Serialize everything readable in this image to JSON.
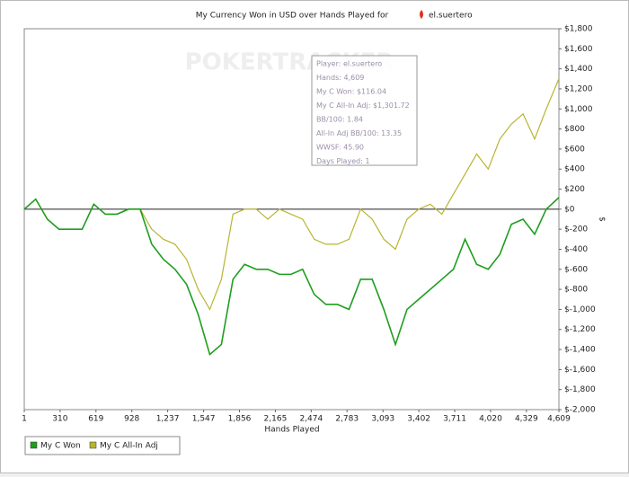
{
  "chart_data": {
    "type": "line",
    "title": "My Currency Won in USD over Hands Played for",
    "player": "el.suertero",
    "watermark": "POKERTRACKER",
    "xlabel": "Hands Played",
    "ylabel": "$",
    "x": [
      1,
      100,
      200,
      300,
      400,
      500,
      600,
      700,
      800,
      900,
      1000,
      1100,
      1200,
      1300,
      1400,
      1500,
      1600,
      1700,
      1800,
      1900,
      2000,
      2100,
      2200,
      2300,
      2400,
      2500,
      2600,
      2700,
      2800,
      2900,
      3000,
      3100,
      3200,
      3300,
      3400,
      3500,
      3600,
      3700,
      3800,
      3900,
      4000,
      4100,
      4200,
      4300,
      4400,
      4500,
      4609
    ],
    "series": [
      {
        "name": "My C Won",
        "color": "#1e9e1e",
        "values": [
          0,
          100,
          -100,
          -200,
          -200,
          -200,
          50,
          -50,
          -50,
          0,
          0,
          -350,
          -500,
          -600,
          -750,
          -1050,
          -1450,
          -1350,
          -700,
          -550,
          -600,
          -600,
          -650,
          -650,
          -600,
          -850,
          -950,
          -950,
          -1000,
          -700,
          -700,
          -1000,
          -1350,
          -1000,
          -900,
          -800,
          -700,
          -600,
          -300,
          -550,
          -600,
          -450,
          -150,
          -100,
          -250,
          0,
          116.04
        ]
      },
      {
        "name": "My C All-In Adj",
        "color": "#b8b432",
        "values": [
          0,
          100,
          -100,
          -200,
          -200,
          -200,
          50,
          -50,
          -50,
          0,
          0,
          -200,
          -300,
          -350,
          -500,
          -800,
          -1000,
          -700,
          -50,
          0,
          0,
          -100,
          0,
          -50,
          -100,
          -300,
          -350,
          -350,
          -300,
          0,
          -100,
          -300,
          -400,
          -100,
          0,
          50,
          -50,
          150,
          350,
          550,
          400,
          700,
          850,
          950,
          700,
          1000,
          1301.72
        ]
      }
    ],
    "xlim": [
      1,
      4609
    ],
    "xticks": [
      1,
      310,
      619,
      928,
      {
        "value": 1237,
        "label": "1,237"
      },
      {
        "value": 1547,
        "label": "1,547"
      },
      {
        "value": 1856,
        "label": "1,856"
      },
      {
        "value": 2165,
        "label": "2,165"
      },
      {
        "value": 2474,
        "label": "2,474"
      },
      {
        "value": 2783,
        "label": "2,783"
      },
      {
        "value": 3093,
        "label": "3,093"
      },
      {
        "value": 3402,
        "label": "3,402"
      },
      {
        "value": 3711,
        "label": "3,711"
      },
      {
        "value": 4020,
        "label": "4,020"
      },
      {
        "value": 4329,
        "label": "4,329"
      },
      {
        "value": 4609,
        "label": "4,609"
      }
    ],
    "ylim": [
      -2000,
      1800
    ],
    "yticks": [
      {
        "value": -2000,
        "label": "$-2,000"
      },
      {
        "value": -1800,
        "label": "$-1,800"
      },
      {
        "value": -1600,
        "label": "$-1,600"
      },
      {
        "value": -1400,
        "label": "$-1,400"
      },
      {
        "value": -1200,
        "label": "$-1,200"
      },
      {
        "value": -1000,
        "label": "$-1,000"
      },
      {
        "value": -800,
        "label": "$-800"
      },
      {
        "value": -600,
        "label": "$-600"
      },
      {
        "value": -400,
        "label": "$-400"
      },
      {
        "value": -200,
        "label": "$-200"
      },
      {
        "value": 0,
        "label": "$0"
      },
      {
        "value": 200,
        "label": "$200"
      },
      {
        "value": 400,
        "label": "$400"
      },
      {
        "value": 600,
        "label": "$600"
      },
      {
        "value": 800,
        "label": "$800"
      },
      {
        "value": 1000,
        "label": "$1,000"
      },
      {
        "value": 1200,
        "label": "$1,200"
      },
      {
        "value": 1400,
        "label": "$1,400"
      },
      {
        "value": 1600,
        "label": "$1,600"
      },
      {
        "value": 1800,
        "label": "$1,800"
      }
    ],
    "tooltip": [
      "Player: el.suertero",
      "Hands: 4,609",
      "My C Won: $116.04",
      "My C All-In Adj: $1,301.72",
      "BB/100: 1.84",
      "All-In Adj BB/100: 13.35",
      "WWSF: 45.90",
      "Days Played: 1"
    ]
  }
}
